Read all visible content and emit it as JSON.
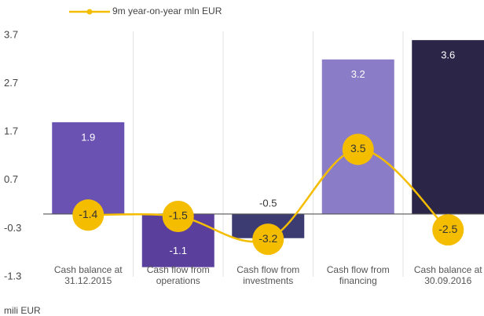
{
  "chart_data": {
    "type": "bar",
    "categories": [
      "Cash balance at 31.12.2015",
      "Cash flow from operations",
      "Cash flow from investments",
      "Cash flow from financing",
      "Cash balance at 30.09.2016"
    ],
    "series": [
      {
        "name": null,
        "type": "bar",
        "colors": [
          "#6a52b3",
          "#5a3f9c",
          "#3c3c72",
          "#8a7cc6",
          "#2b2648"
        ],
        "values": [
          1.9,
          -1.1,
          -0.5,
          3.2,
          3.6
        ]
      },
      {
        "name": "9m year-on-year mln EUR",
        "type": "line",
        "axis": "y2",
        "color": "#f5bd00",
        "values": [
          -1.4,
          -1.5,
          -3.2,
          3.5,
          -2.5
        ]
      }
    ],
    "ylim": [
      -1.3,
      3.7
    ],
    "yticks": [
      -1.3,
      -0.3,
      0.7,
      1.7,
      2.7,
      3.7
    ],
    "y2lim": [
      -6,
      12
    ],
    "ylabel": "mili EUR"
  }
}
